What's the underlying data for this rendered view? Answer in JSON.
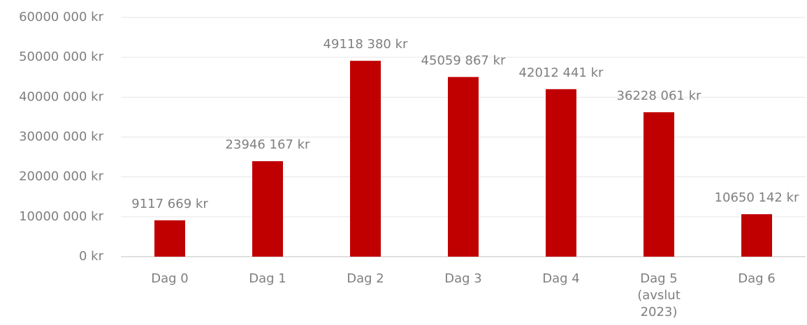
{
  "chart_data": {
    "type": "bar",
    "categories": [
      "Dag 0",
      "Dag 1",
      "Dag 2",
      "Dag 3",
      "Dag 4",
      "Dag 5 (avslut 2023)",
      "Dag 6"
    ],
    "values": [
      9117669,
      23946167,
      49118380,
      45059867,
      42012441,
      36228061,
      10650142
    ],
    "value_labels": [
      "9117 669 kr",
      "23946 167 kr",
      "49118 380 kr",
      "45059 867 kr",
      "42012 441 kr",
      "36228 061 kr",
      "10650 142 kr"
    ],
    "color": "#c00000",
    "ylim": [
      0,
      60000000
    ],
    "yticks": [
      {
        "value": 0,
        "label": "0 kr"
      },
      {
        "value": 10000000,
        "label": "10000 000 kr"
      },
      {
        "value": 20000000,
        "label": "20000 000 kr"
      },
      {
        "value": 30000000,
        "label": "30000 000 kr"
      },
      {
        "value": 40000000,
        "label": "40000 000 kr"
      },
      {
        "value": 50000000,
        "label": "50000 000 kr"
      },
      {
        "value": 60000000,
        "label": "60000 000 kr"
      }
    ],
    "grid": true
  }
}
